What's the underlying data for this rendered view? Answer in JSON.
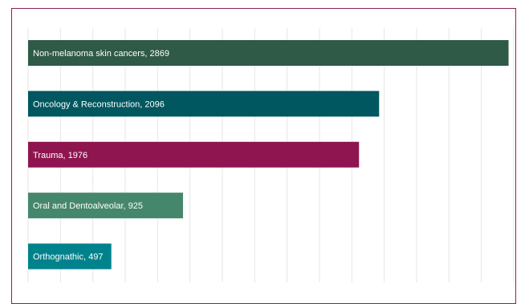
{
  "colors": {
    "frame": "#8e1f55",
    "grid": "#e6e6e6"
  },
  "chart_data": {
    "type": "bar",
    "orientation": "horizontal",
    "grid": true,
    "xlim": [
      0,
      2900
    ],
    "categories": [
      "Non-melanoma skin cancers",
      "Oncology & Reconstruction",
      "Trauma",
      "Oral and Dentoalveolar",
      "Orthognathic"
    ],
    "values": [
      2869,
      2096,
      1976,
      925,
      497
    ],
    "labels": [
      "Non-melanoma skin cancers, 2869",
      "Oncology & Reconstruction, 2096",
      "Trauma, 1976",
      "Oral and Dentoalveolar, 925",
      "Orthognathic, 497"
    ],
    "bar_colors": [
      "#2e5a47",
      "#00575f",
      "#8e1550",
      "#45876d",
      "#00828c"
    ]
  }
}
